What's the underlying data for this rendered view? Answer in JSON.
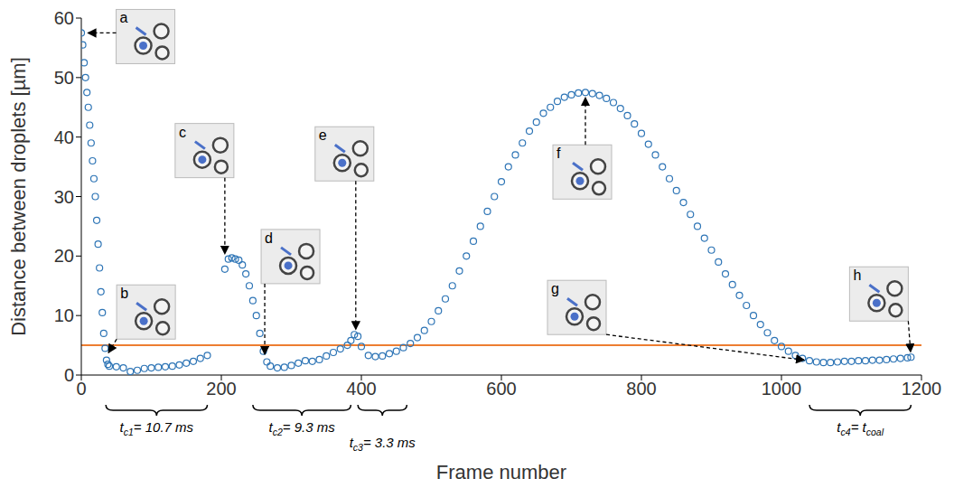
{
  "chart_data": {
    "type": "scatter",
    "x_label": "Frame number",
    "y_label": "Distance between droplets [µm]",
    "color": "#2e75b6",
    "marker": "open_circle",
    "xlim": [
      0,
      1200
    ],
    "xticks": [
      0,
      200,
      400,
      600,
      800,
      1000,
      1200
    ],
    "ylim": [
      0,
      60
    ],
    "yticks": [
      0,
      10,
      20,
      30,
      40,
      50,
      60
    ],
    "x": [
      0,
      2,
      4,
      6,
      8,
      10,
      12,
      14,
      16,
      18,
      20,
      22,
      24,
      26,
      28,
      30,
      32,
      34,
      36,
      38,
      40,
      50,
      60,
      70,
      80,
      90,
      100,
      110,
      120,
      130,
      140,
      150,
      160,
      170,
      180,
      205,
      210,
      215,
      220,
      225,
      230,
      235,
      240,
      245,
      250,
      255,
      260,
      265,
      270,
      280,
      290,
      300,
      310,
      320,
      330,
      340,
      350,
      360,
      370,
      380,
      385,
      390,
      395,
      400,
      410,
      420,
      430,
      440,
      450,
      460,
      470,
      480,
      490,
      500,
      510,
      520,
      530,
      540,
      550,
      560,
      570,
      580,
      590,
      600,
      610,
      620,
      630,
      640,
      650,
      660,
      670,
      680,
      690,
      700,
      710,
      720,
      730,
      740,
      750,
      760,
      770,
      780,
      790,
      800,
      810,
      820,
      830,
      840,
      850,
      860,
      870,
      880,
      890,
      900,
      910,
      920,
      930,
      940,
      950,
      960,
      970,
      980,
      990,
      1000,
      1010,
      1020,
      1030,
      1040,
      1050,
      1060,
      1070,
      1080,
      1090,
      1100,
      1110,
      1120,
      1130,
      1140,
      1150,
      1160,
      1170,
      1180,
      1185
    ],
    "values": [
      57.5,
      55.5,
      52.5,
      50,
      47.5,
      45,
      42,
      39,
      36,
      33,
      30,
      26,
      22,
      18,
      14,
      10.5,
      7,
      4.5,
      2.5,
      1.8,
      1.5,
      1.4,
      1.2,
      0.6,
      0.8,
      1.1,
      1.2,
      1.3,
      1.4,
      1.5,
      1.7,
      2,
      2.3,
      2.8,
      3.3,
      17.8,
      19.5,
      19.7,
      19.5,
      19.3,
      18.5,
      17,
      15,
      12.5,
      10,
      7,
      4,
      2.2,
      1.5,
      1.2,
      1.3,
      1.6,
      2,
      2.4,
      2.3,
      2.6,
      3.2,
      3.8,
      4.4,
      5,
      5.8,
      6.8,
      6.5,
      4.8,
      3.3,
      3.1,
      3.2,
      3.6,
      4,
      4.6,
      5.3,
      6.3,
      7.5,
      9,
      10.8,
      12.8,
      15,
      17.5,
      20,
      22.5,
      25,
      27.5,
      30,
      32.5,
      35,
      37,
      39,
      41,
      42.5,
      44,
      45,
      46,
      46.7,
      47.1,
      47.4,
      47.5,
      47.3,
      47,
      46.5,
      45.8,
      44.8,
      43.6,
      42.2,
      40.6,
      38.8,
      37,
      35,
      33,
      31,
      29,
      27,
      25,
      23,
      21,
      19,
      17,
      15.2,
      13.4,
      11.7,
      10,
      8.5,
      7.1,
      5.8,
      4.8,
      4,
      3.3,
      2.8,
      2.4,
      2.2,
      2.1,
      2.1,
      2.2,
      2.3,
      2.3,
      2.4,
      2.4,
      2.5,
      2.5,
      2.6,
      2.7,
      2.8,
      2.9,
      3
    ],
    "threshold": {
      "value": 5,
      "color": "#ed7d31"
    },
    "annotations": [
      {
        "label": "a",
        "x": 2,
        "y": 57.5
      },
      {
        "label": "b",
        "x": 35,
        "y": 3
      },
      {
        "label": "c",
        "x": 205,
        "y": 19.5
      },
      {
        "label": "d",
        "x": 262,
        "y": 2.6
      },
      {
        "label": "e",
        "x": 392,
        "y": 6.8
      },
      {
        "label": "f",
        "x": 720,
        "y": 47.5
      },
      {
        "label": "g",
        "x": 1040,
        "y": 2.4
      },
      {
        "label": "h",
        "x": 1185,
        "y": 3
      }
    ],
    "intervals": [
      {
        "start": 35,
        "end": 180,
        "label": "tc1= 10.7 ms"
      },
      {
        "start": 245,
        "end": 385,
        "label": "tc2= 9.3 ms"
      },
      {
        "start": 395,
        "end": 465,
        "label": "tc3= 3.3 ms"
      },
      {
        "start": 1040,
        "end": 1185,
        "label": "tc4= tcoal"
      }
    ]
  }
}
